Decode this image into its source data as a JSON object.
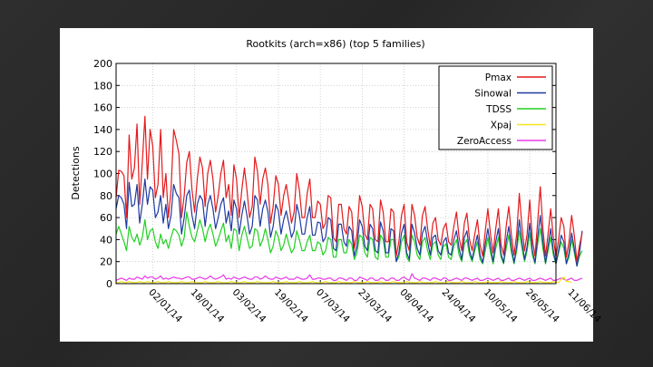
{
  "chart_data": {
    "type": "line",
    "title": "Rootkits (arch=x86) (top 5 families)",
    "ylabel": "Detections",
    "xlabel": "",
    "ylim": [
      0,
      200
    ],
    "yticks": [
      0,
      20,
      40,
      60,
      80,
      100,
      120,
      140,
      160,
      180,
      200
    ],
    "xlim": [
      0,
      168
    ],
    "xticks": [
      {
        "x": 14,
        "label": "02/01/14"
      },
      {
        "x": 30,
        "label": "18/01/14"
      },
      {
        "x": 46,
        "label": "03/02/14"
      },
      {
        "x": 62,
        "label": "19/02/14"
      },
      {
        "x": 78,
        "label": "07/03/14"
      },
      {
        "x": 94,
        "label": "23/03/14"
      },
      {
        "x": 110,
        "label": "08/04/14"
      },
      {
        "x": 126,
        "label": "24/04/14"
      },
      {
        "x": 142,
        "label": "10/05/14"
      },
      {
        "x": 158,
        "label": "26/05/14"
      },
      {
        "x": 174,
        "label": "11/06/14"
      }
    ],
    "grid": true,
    "legend_position": "top-right",
    "series": [
      {
        "name": "Pmax",
        "color": "#e41a1c",
        "values": [
          78,
          103,
          102,
          98,
          60,
          135,
          95,
          105,
          145,
          72,
          110,
          152,
          95,
          140,
          125,
          78,
          90,
          140,
          78,
          100,
          60,
          85,
          140,
          130,
          118,
          60,
          80,
          110,
          120,
          85,
          65,
          95,
          115,
          105,
          70,
          100,
          112,
          95,
          65,
          80,
          100,
          112,
          78,
          90,
          62,
          108,
          95,
          60,
          85,
          105,
          85,
          60,
          70,
          115,
          102,
          72,
          95,
          105,
          90,
          55,
          70,
          98,
          90,
          62,
          80,
          90,
          75,
          55,
          65,
          100,
          85,
          60,
          60,
          82,
          95,
          60,
          60,
          75,
          72,
          50,
          55,
          80,
          78,
          42,
          38,
          72,
          72,
          50,
          45,
          70,
          65,
          32,
          45,
          80,
          70,
          45,
          40,
          72,
          68,
          40,
          38,
          76,
          65,
          38,
          38,
          68,
          65,
          25,
          38,
          62,
          72,
          38,
          30,
          72,
          62,
          42,
          35,
          62,
          70,
          50,
          34,
          55,
          60,
          40,
          35,
          50,
          55,
          38,
          35,
          52,
          65,
          42,
          30,
          55,
          64,
          40,
          30,
          45,
          58,
          35,
          25,
          48,
          68,
          45,
          28,
          50,
          68,
          36,
          26,
          52,
          70,
          44,
          26,
          45,
          82,
          52,
          30,
          45,
          76,
          40,
          25,
          56,
          88,
          50,
          25,
          45,
          68,
          42,
          24,
          40,
          60,
          52,
          24,
          38,
          62,
          44,
          20,
          35,
          46
        ]
      },
      {
        "name": "Sinowal",
        "color": "#1f3aa0",
        "values": [
          68,
          80,
          78,
          72,
          50,
          92,
          70,
          72,
          90,
          55,
          72,
          95,
          72,
          88,
          85,
          60,
          65,
          80,
          55,
          72,
          50,
          62,
          90,
          82,
          78,
          45,
          60,
          80,
          85,
          62,
          50,
          72,
          80,
          76,
          52,
          72,
          80,
          68,
          50,
          60,
          72,
          78,
          55,
          66,
          48,
          76,
          68,
          45,
          62,
          75,
          62,
          45,
          52,
          80,
          76,
          52,
          68,
          76,
          65,
          42,
          52,
          72,
          66,
          45,
          58,
          66,
          55,
          42,
          48,
          72,
          62,
          45,
          45,
          60,
          70,
          44,
          44,
          56,
          55,
          38,
          42,
          60,
          58,
          32,
          30,
          54,
          54,
          38,
          34,
          52,
          48,
          25,
          34,
          58,
          52,
          34,
          30,
          54,
          50,
          30,
          28,
          56,
          48,
          28,
          28,
          50,
          48,
          20,
          28,
          46,
          54,
          28,
          22,
          54,
          46,
          32,
          26,
          46,
          52,
          38,
          26,
          42,
          44,
          30,
          26,
          38,
          42,
          28,
          26,
          40,
          48,
          32,
          22,
          42,
          48,
          30,
          22,
          34,
          44,
          26,
          19,
          36,
          50,
          34,
          20,
          38,
          50,
          27,
          19,
          38,
          52,
          33,
          19,
          34,
          58,
          38,
          22,
          34,
          55,
          30,
          19,
          42,
          62,
          38,
          19,
          34,
          50,
          30,
          18,
          30,
          44,
          38,
          18,
          28,
          46,
          32,
          16,
          28,
          48
        ]
      },
      {
        "name": "TDSS",
        "color": "#22d022",
        "values": [
          45,
          52,
          45,
          38,
          30,
          52,
          42,
          38,
          45,
          35,
          42,
          58,
          40,
          48,
          50,
          38,
          32,
          45,
          36,
          40,
          32,
          42,
          50,
          48,
          44,
          34,
          42,
          65,
          52,
          42,
          38,
          48,
          58,
          50,
          38,
          48,
          54,
          45,
          34,
          40,
          48,
          55,
          38,
          44,
          32,
          50,
          48,
          30,
          44,
          52,
          42,
          32,
          34,
          50,
          48,
          34,
          40,
          50,
          40,
          28,
          34,
          48,
          42,
          30,
          35,
          45,
          36,
          28,
          32,
          48,
          40,
          30,
          30,
          38,
          44,
          30,
          30,
          38,
          36,
          26,
          30,
          42,
          40,
          24,
          24,
          40,
          40,
          28,
          28,
          40,
          36,
          22,
          28,
          44,
          42,
          28,
          24,
          42,
          40,
          24,
          22,
          44,
          40,
          24,
          24,
          40,
          40,
          20,
          24,
          38,
          44,
          24,
          20,
          44,
          38,
          26,
          22,
          38,
          42,
          30,
          22,
          36,
          38,
          26,
          22,
          34,
          36,
          24,
          22,
          34,
          40,
          26,
          20,
          36,
          40,
          26,
          20,
          30,
          38,
          22,
          18,
          30,
          42,
          28,
          18,
          32,
          42,
          24,
          18,
          32,
          44,
          28,
          18,
          30,
          48,
          32,
          20,
          30,
          46,
          26,
          18,
          36,
          50,
          32,
          18,
          30,
          42,
          26,
          18,
          28,
          38,
          32,
          18,
          24,
          40,
          28,
          16,
          25,
          30
        ]
      },
      {
        "name": "Xpaj",
        "color": "#f5e61e",
        "values": [
          1,
          1,
          2,
          1,
          1,
          2,
          1,
          1,
          1,
          2,
          1,
          1,
          2,
          1,
          1,
          1,
          2,
          1,
          1,
          1,
          2,
          1,
          1,
          1,
          1,
          2,
          1,
          1,
          1,
          2,
          1,
          1,
          1,
          1,
          2,
          1,
          1,
          1,
          1,
          2,
          1,
          1,
          1,
          1,
          2,
          1,
          1,
          1,
          1,
          2,
          1,
          1,
          1,
          1,
          2,
          1,
          1,
          1,
          1,
          1,
          2,
          1,
          1,
          1,
          1,
          2,
          1,
          1,
          1,
          1,
          2,
          1,
          1,
          1,
          1,
          2,
          1,
          1,
          1,
          1,
          2,
          1,
          1,
          1,
          1,
          2,
          1,
          1,
          1,
          1,
          1,
          2,
          1,
          1,
          1,
          1,
          2,
          1,
          1,
          1,
          1,
          2,
          1,
          1,
          1,
          1,
          2,
          1,
          1,
          1,
          1,
          2,
          1,
          1,
          1,
          1,
          2,
          1,
          1,
          1,
          1,
          1,
          2,
          1,
          1,
          1,
          1,
          2,
          1,
          1,
          1,
          1,
          2,
          1,
          1,
          1,
          1,
          2,
          1,
          1,
          1,
          1,
          2,
          1,
          1,
          1,
          1,
          2,
          1,
          1,
          1,
          1,
          2,
          1,
          1,
          1,
          1,
          2,
          1,
          1,
          1,
          1,
          2,
          1,
          1,
          1,
          1,
          2,
          1,
          1,
          4,
          6,
          2,
          2,
          1
        ]
      },
      {
        "name": "ZeroAccess",
        "color": "#e83ce8",
        "values": [
          3,
          4,
          5,
          4,
          3,
          5,
          4,
          4,
          6,
          5,
          4,
          7,
          5,
          6,
          6,
          4,
          5,
          7,
          4,
          5,
          4,
          5,
          6,
          5,
          5,
          4,
          5,
          6,
          6,
          4,
          4,
          5,
          6,
          5,
          4,
          5,
          7,
          5,
          4,
          5,
          6,
          8,
          4,
          5,
          4,
          6,
          5,
          4,
          5,
          6,
          5,
          4,
          4,
          6,
          6,
          4,
          5,
          7,
          5,
          4,
          4,
          6,
          5,
          4,
          5,
          6,
          4,
          4,
          4,
          6,
          5,
          4,
          4,
          5,
          8,
          4,
          4,
          5,
          5,
          4,
          4,
          5,
          5,
          3,
          3,
          5,
          5,
          4,
          3,
          5,
          5,
          3,
          3,
          6,
          5,
          4,
          3,
          5,
          5,
          3,
          3,
          5,
          5,
          3,
          3,
          5,
          5,
          3,
          3,
          5,
          6,
          4,
          3,
          9,
          5,
          4,
          3,
          5,
          5,
          4,
          3,
          5,
          5,
          4,
          3,
          5,
          5,
          3,
          3,
          4,
          5,
          4,
          3,
          5,
          5,
          4,
          3,
          4,
          5,
          3,
          3,
          4,
          5,
          4,
          3,
          4,
          5,
          3,
          3,
          4,
          5,
          3,
          3,
          4,
          5,
          4,
          3,
          4,
          5,
          3,
          3,
          4,
          5,
          4,
          3,
          4,
          5,
          3,
          3,
          4,
          5,
          4,
          3,
          4,
          5,
          3,
          3,
          4,
          5
        ]
      }
    ]
  }
}
